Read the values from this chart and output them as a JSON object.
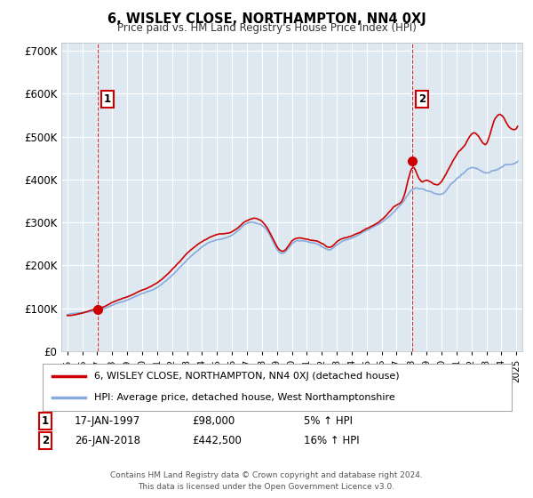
{
  "title": "6, WISLEY CLOSE, NORTHAMPTON, NN4 0XJ",
  "subtitle": "Price paid vs. HM Land Registry's House Price Index (HPI)",
  "ylabel_ticks": [
    "£0",
    "£100K",
    "£200K",
    "£300K",
    "£400K",
    "£500K",
    "£600K",
    "£700K"
  ],
  "ytick_values": [
    0,
    100000,
    200000,
    300000,
    400000,
    500000,
    600000,
    700000
  ],
  "ylim": [
    0,
    720000
  ],
  "sale1_year": 1997.05,
  "sale1_price": 98000,
  "sale2_year": 2018.07,
  "sale2_price": 442500,
  "legend_line1": "6, WISLEY CLOSE, NORTHAMPTON, NN4 0XJ (detached house)",
  "legend_line2": "HPI: Average price, detached house, West Northamptonshire",
  "annotation1_label": "1",
  "annotation1_date": "17-JAN-1997",
  "annotation1_price": "£98,000",
  "annotation1_hpi": "5% ↑ HPI",
  "annotation2_label": "2",
  "annotation2_date": "26-JAN-2018",
  "annotation2_price": "£442,500",
  "annotation2_hpi": "16% ↑ HPI",
  "footer": "Contains HM Land Registry data © Crown copyright and database right 2024.\nThis data is licensed under the Open Government Licence v3.0.",
  "line_color_price": "#cc0000",
  "line_color_hpi": "#88aadd",
  "bg_color": "#dde8f0",
  "grid_color": "#ffffff",
  "fig_bg": "#ffffff",
  "sale_box_color": "#cc0000"
}
